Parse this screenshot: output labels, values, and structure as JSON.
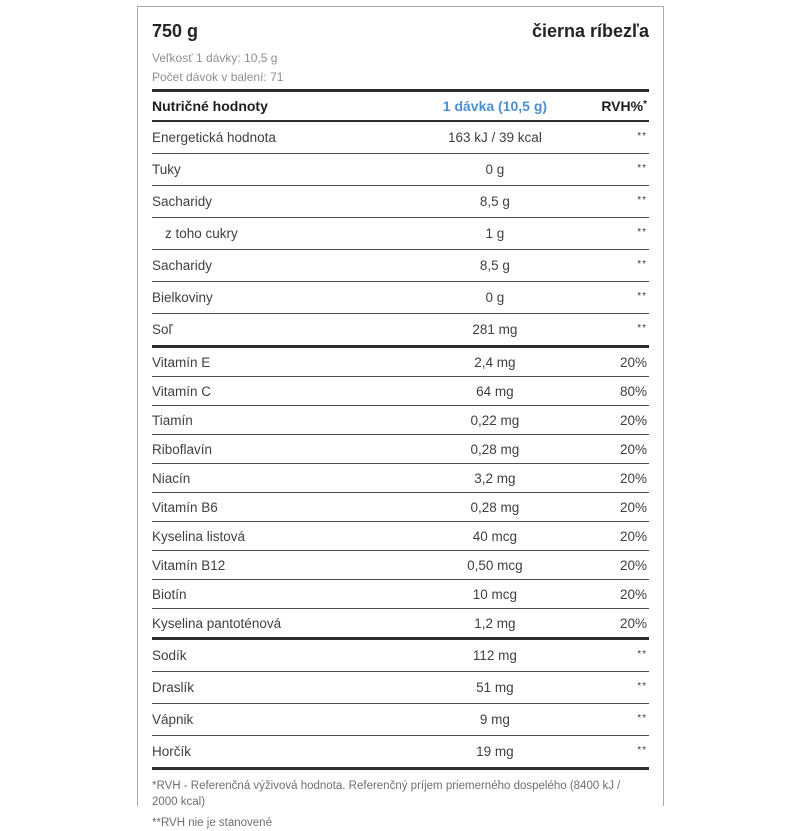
{
  "product": {
    "weight": "750 g",
    "flavor": "čierna ríbezľa",
    "serving_size_label": "Veľkosť 1 dávky: 10,5 g",
    "servings_per_package_label": "Počet dávok v balení: 71"
  },
  "colors": {
    "accent_blue": "#4a90d2",
    "rule_dark": "#2d2d2d",
    "row_text": "#3f3f3f",
    "muted_gray": "#8f8f8f"
  },
  "table": {
    "header": {
      "col1": "Nutričné hodnoty",
      "col2": "1 dávka (10,5 g)",
      "col3": "RVH%",
      "col3_sup": "*"
    },
    "rows": [
      {
        "name": "Energetická hodnota",
        "value": "163 kJ / 39 kcal",
        "rvh": "**",
        "indent": false,
        "section_end": false
      },
      {
        "name": "Tuky",
        "value": "0 g",
        "rvh": "**",
        "indent": false,
        "section_end": false
      },
      {
        "name": "Sacharidy",
        "value": "8,5 g",
        "rvh": "**",
        "indent": false,
        "section_end": false
      },
      {
        "name": "z toho cukry",
        "value": "1 g",
        "rvh": "**",
        "indent": true,
        "section_end": false
      },
      {
        "name": "Sacharidy",
        "value": "8,5 g",
        "rvh": "**",
        "indent": false,
        "section_end": false
      },
      {
        "name": "Bielkoviny",
        "value": "0 g",
        "rvh": "**",
        "indent": false,
        "section_end": false
      },
      {
        "name": "Soľ",
        "value": "281 mg",
        "rvh": "**",
        "indent": false,
        "section_end": true
      },
      {
        "name": "Vitamín E",
        "value": "2,4 mg",
        "rvh": "20%",
        "indent": false,
        "section_end": false
      },
      {
        "name": "Vitamín C",
        "value": "64 mg",
        "rvh": "80%",
        "indent": false,
        "section_end": false
      },
      {
        "name": "Tiamín",
        "value": "0,22 mg",
        "rvh": "20%",
        "indent": false,
        "section_end": false
      },
      {
        "name": "Riboflavín",
        "value": "0,28 mg",
        "rvh": "20%",
        "indent": false,
        "section_end": false
      },
      {
        "name": "Niacín",
        "value": "3,2 mg",
        "rvh": "20%",
        "indent": false,
        "section_end": false
      },
      {
        "name": "Vitamín B6",
        "value": "0,28 mg",
        "rvh": "20%",
        "indent": false,
        "section_end": false
      },
      {
        "name": "Kyselina listová",
        "value": "40 mcg",
        "rvh": "20%",
        "indent": false,
        "section_end": false
      },
      {
        "name": "Vitamín B12",
        "value": "0,50 mcg",
        "rvh": "20%",
        "indent": false,
        "section_end": false
      },
      {
        "name": "Biotín",
        "value": "10 mcg",
        "rvh": "20%",
        "indent": false,
        "section_end": false
      },
      {
        "name": "Kyselina pantoténová",
        "value": "1,2 mg",
        "rvh": "20%",
        "indent": false,
        "section_end": true
      },
      {
        "name": "Sodík",
        "value": "112 mg",
        "rvh": "**",
        "indent": false,
        "section_end": false
      },
      {
        "name": "Draslík",
        "value": "51 mg",
        "rvh": "**",
        "indent": false,
        "section_end": false
      },
      {
        "name": "Vápnik",
        "value": "9 mg",
        "rvh": "**",
        "indent": false,
        "section_end": false
      },
      {
        "name": "Horčík",
        "value": "19 mg",
        "rvh": "**",
        "indent": false,
        "section_end": true
      }
    ]
  },
  "footnotes": {
    "rvh_definition": "*RVH - Referenčná výživová hodnota. Referenčný príjem priemerného dospelého (8400 kJ / 2000 kcal)",
    "rvh_not_set": "**RVH nie je stanovené"
  }
}
